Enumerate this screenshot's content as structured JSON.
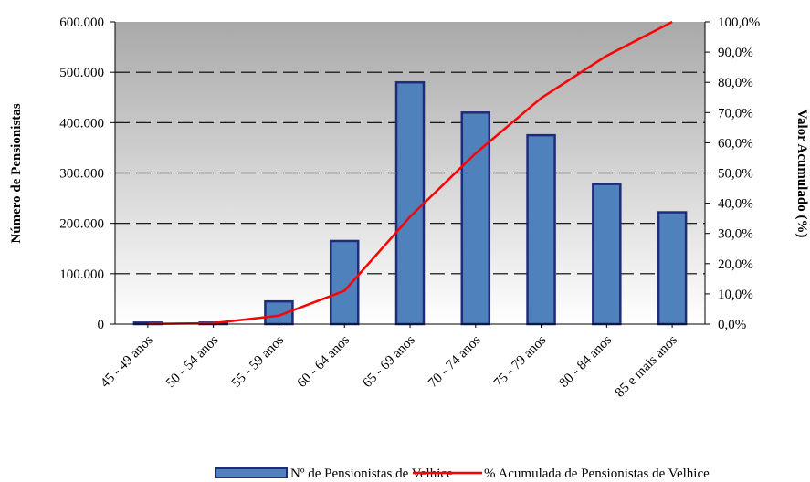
{
  "chart_data": {
    "type": "bar",
    "categories": [
      "45 - 49 anos",
      "50 - 54 anos",
      "55 - 59 anos",
      "60 - 64 anos",
      "65 - 69 anos",
      "70 - 74 anos",
      "75 - 79 anos",
      "80 - 84 anos",
      "85 e mais anos"
    ],
    "series": [
      {
        "name": "Nº de Pensionistas de Velhice",
        "type": "bar",
        "axis": "left",
        "color": "#4f81bd",
        "values": [
          3000,
          3000,
          45000,
          165000,
          480000,
          420000,
          375000,
          278000,
          222000
        ]
      },
      {
        "name": "% Acumulada de Pensionistas de Velhice",
        "type": "line",
        "axis": "right",
        "color": "#ff0000",
        "values": [
          0.1,
          0.3,
          2.8,
          11.0,
          35.5,
          56.5,
          74.8,
          88.8,
          100.0
        ]
      }
    ],
    "ylabel": "Número de Pensionistas",
    "y2label": "Valor Acumulado (%)",
    "ylim": [
      0,
      600000
    ],
    "y2lim": [
      0,
      100
    ],
    "yticks": [
      "0",
      "100.000",
      "200.000",
      "300.000",
      "400.000",
      "500.000",
      "600.000"
    ],
    "y2ticks": [
      "0,0%",
      "10,0%",
      "20,0%",
      "30,0%",
      "40,0%",
      "50,0%",
      "60,0%",
      "70,0%",
      "80,0%",
      "90,0%",
      "100,0%"
    ],
    "grid": "horizontal dashed",
    "legend_position": "bottom"
  }
}
